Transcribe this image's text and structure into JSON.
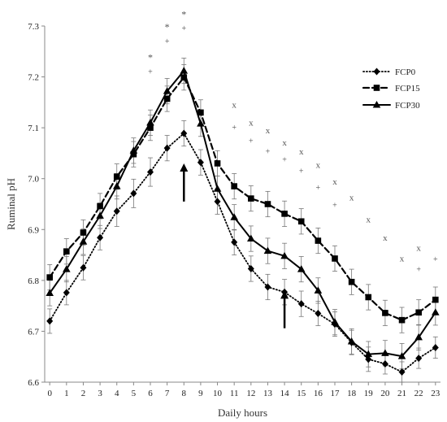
{
  "chart_data": {
    "type": "line",
    "title": "",
    "xlabel": "Daily hours",
    "ylabel": "Ruminal pH",
    "ylim": [
      6.6,
      7.3
    ],
    "yticks": [
      "6.6",
      "6.7",
      "6.8",
      "6.9",
      "7.0",
      "7.1",
      "7.2",
      "7.3"
    ],
    "xlim": [
      -0.3,
      23.3
    ],
    "x": [
      0,
      1,
      2,
      3,
      4,
      5,
      6,
      7,
      8,
      9,
      10,
      11,
      12,
      13,
      14,
      15,
      16,
      17,
      18,
      19,
      20,
      21,
      22,
      23
    ],
    "xticks": [
      "0",
      "1",
      "2",
      "3",
      "4",
      "5",
      "6",
      "7",
      "8",
      "9",
      "10",
      "11",
      "12",
      "13",
      "14",
      "15",
      "16",
      "17",
      "18",
      "19",
      "20",
      "21",
      "22",
      "23"
    ],
    "grid": false,
    "legend_position": "top-right",
    "series": [
      {
        "name": "FCP0",
        "line_style": "dotted",
        "marker": "diamond",
        "color": "#000000",
        "values": [
          6.72,
          6.776,
          6.825,
          6.884,
          6.936,
          6.971,
          7.013,
          7.06,
          7.089,
          7.032,
          6.955,
          6.875,
          6.823,
          6.787,
          6.777,
          6.754,
          6.735,
          6.714,
          6.678,
          6.645,
          6.636,
          6.62,
          6.647,
          6.668
        ],
        "error": [
          0.024,
          0.024,
          0.024,
          0.024,
          0.03,
          0.028,
          0.028,
          0.025,
          0.025,
          0.025,
          0.025,
          0.025,
          0.025,
          0.025,
          0.025,
          0.025,
          0.024,
          0.024,
          0.024,
          0.024,
          0.02,
          0.02,
          0.02,
          0.021
        ]
      },
      {
        "name": "FCP15",
        "line_style": "dashed",
        "marker": "square",
        "color": "#000000",
        "values": [
          6.806,
          6.857,
          6.894,
          6.946,
          7.004,
          7.048,
          7.1,
          7.157,
          7.199,
          7.13,
          7.03,
          6.985,
          6.961,
          6.95,
          6.931,
          6.916,
          6.878,
          6.843,
          6.797,
          6.767,
          6.736,
          6.722,
          6.737,
          6.762
        ]
      },
      {
        "name": "FCP30",
        "line_style": "solid",
        "marker": "triangle",
        "color": "#000000",
        "values": [
          6.775,
          6.822,
          6.876,
          6.927,
          6.985,
          7.055,
          7.11,
          7.172,
          7.212,
          7.108,
          6.98,
          6.924,
          6.882,
          6.858,
          6.848,
          6.822,
          6.78,
          6.718,
          6.68,
          6.655,
          6.657,
          6.651,
          6.688,
          6.737
        ]
      }
    ],
    "annotations": {
      "star": [
        {
          "x": 6,
          "y": 7.24
        },
        {
          "x": 7,
          "y": 7.3
        },
        {
          "x": 8,
          "y": 7.325
        }
      ],
      "plus": [
        {
          "x": 6,
          "y": 7.21
        },
        {
          "x": 7,
          "y": 7.27
        },
        {
          "x": 8,
          "y": 7.295
        },
        {
          "x": 11,
          "y": 7.1
        },
        {
          "x": 12,
          "y": 7.074
        },
        {
          "x": 13,
          "y": 7.053
        },
        {
          "x": 14,
          "y": 7.037
        },
        {
          "x": 15,
          "y": 7.015
        },
        {
          "x": 16,
          "y": 6.982
        },
        {
          "x": 17,
          "y": 6.948
        },
        {
          "x": 22,
          "y": 6.821
        },
        {
          "x": 23,
          "y": 6.841
        }
      ],
      "cross": [
        {
          "x": 11,
          "y": 7.145
        },
        {
          "x": 12,
          "y": 7.11
        },
        {
          "x": 13,
          "y": 7.095
        },
        {
          "x": 14,
          "y": 7.071
        },
        {
          "x": 15,
          "y": 7.053
        },
        {
          "x": 16,
          "y": 7.027
        },
        {
          "x": 17,
          "y": 6.994
        },
        {
          "x": 18,
          "y": 6.963
        },
        {
          "x": 19,
          "y": 6.92
        },
        {
          "x": 20,
          "y": 6.884
        },
        {
          "x": 21,
          "y": 6.843
        },
        {
          "x": 22,
          "y": 6.864
        }
      ],
      "arrows": [
        {
          "x": 8,
          "y_tip": 7.03,
          "y_tail": 6.955
        },
        {
          "x": 14,
          "y_tip": 6.78,
          "y_tail": 6.706
        }
      ]
    }
  }
}
